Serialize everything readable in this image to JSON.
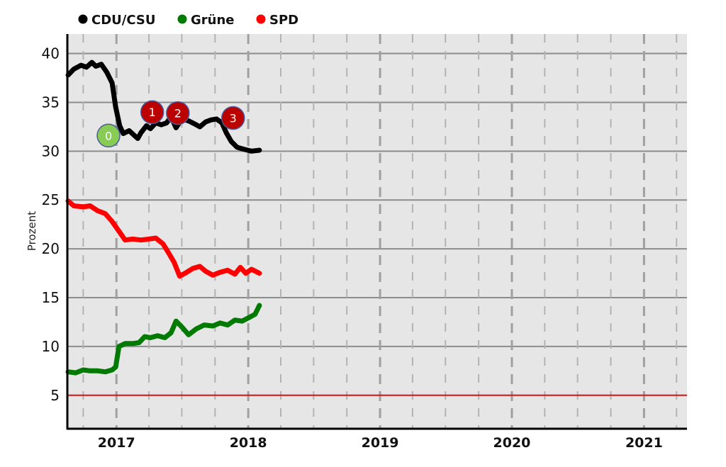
{
  "chart_data": {
    "type": "line",
    "title": "",
    "xlabel": "",
    "ylabel": "Prozent",
    "ylim": [
      1.5,
      42
    ],
    "xlim": [
      "2016-08-20",
      "2021-04-30"
    ],
    "y_ticks": [
      5,
      10,
      15,
      20,
      25,
      30,
      35,
      40
    ],
    "x_tick_labels": [
      {
        "label": "2017",
        "date": "2017-01-01"
      },
      {
        "label": "2018",
        "date": "2018-01-01"
      },
      {
        "label": "2019",
        "date": "2019-01-01"
      },
      {
        "label": "2020",
        "date": "2020-01-01"
      },
      {
        "label": "2021",
        "date": "2021-01-01"
      }
    ],
    "quarter_gridlines": [
      "2016-10-01",
      "2017-04-01",
      "2017-07-01",
      "2017-10-01",
      "2018-04-01",
      "2018-07-01",
      "2018-10-01",
      "2019-04-01",
      "2019-07-01",
      "2019-10-01",
      "2020-04-01",
      "2020-07-01",
      "2020-10-01",
      "2021-04-01"
    ],
    "grid": true,
    "legend": "top-left",
    "threshold_line": {
      "value": 5,
      "color": "#dd1111"
    },
    "colors": {
      "plot_background": "#e6e6e6",
      "gridline": "#8c8c8c"
    },
    "series": [
      {
        "name": "CDU/CSU",
        "color": "#000000",
        "points": [
          [
            "2016-08-20",
            37.8
          ],
          [
            "2016-09-05",
            38.4
          ],
          [
            "2016-09-25",
            38.8
          ],
          [
            "2016-10-10",
            38.6
          ],
          [
            "2016-10-25",
            39.1
          ],
          [
            "2016-11-05",
            38.7
          ],
          [
            "2016-11-20",
            38.9
          ],
          [
            "2016-12-05",
            38.1
          ],
          [
            "2016-12-20",
            37.0
          ],
          [
            "2016-12-30",
            34.5
          ],
          [
            "2017-01-10",
            32.6
          ],
          [
            "2017-01-20",
            31.8
          ],
          [
            "2017-02-05",
            32.1
          ],
          [
            "2017-02-20",
            31.6
          ],
          [
            "2017-03-01",
            31.3
          ],
          [
            "2017-03-10",
            31.9
          ],
          [
            "2017-03-25",
            32.6
          ],
          [
            "2017-04-05",
            32.3
          ],
          [
            "2017-04-20",
            32.9
          ],
          [
            "2017-05-05",
            32.7
          ],
          [
            "2017-05-20",
            32.9
          ],
          [
            "2017-06-01",
            33.5
          ],
          [
            "2017-06-15",
            32.4
          ],
          [
            "2017-07-01",
            33.3
          ],
          [
            "2017-07-20",
            33.1
          ],
          [
            "2017-08-05",
            32.8
          ],
          [
            "2017-08-20",
            32.5
          ],
          [
            "2017-09-05",
            33.0
          ],
          [
            "2017-09-20",
            33.2
          ],
          [
            "2017-10-05",
            33.3
          ],
          [
            "2017-10-20",
            32.9
          ],
          [
            "2017-11-01",
            31.9
          ],
          [
            "2017-11-15",
            31.0
          ],
          [
            "2017-12-01",
            30.4
          ],
          [
            "2017-12-20",
            30.2
          ],
          [
            "2018-01-10",
            30.0
          ],
          [
            "2018-02-01",
            30.1
          ]
        ]
      },
      {
        "name": "Grüne",
        "color": "#007a00",
        "points": [
          [
            "2016-08-20",
            7.4
          ],
          [
            "2016-09-10",
            7.3
          ],
          [
            "2016-10-01",
            7.6
          ],
          [
            "2016-10-20",
            7.5
          ],
          [
            "2016-11-10",
            7.5
          ],
          [
            "2016-12-01",
            7.4
          ],
          [
            "2016-12-20",
            7.6
          ],
          [
            "2016-12-30",
            7.9
          ],
          [
            "2017-01-08",
            10.0
          ],
          [
            "2017-01-25",
            10.3
          ],
          [
            "2017-02-15",
            10.3
          ],
          [
            "2017-03-05",
            10.4
          ],
          [
            "2017-03-20",
            11.0
          ],
          [
            "2017-04-05",
            10.9
          ],
          [
            "2017-04-25",
            11.1
          ],
          [
            "2017-05-15",
            10.9
          ],
          [
            "2017-06-01",
            11.4
          ],
          [
            "2017-06-15",
            12.6
          ],
          [
            "2017-07-01",
            12.0
          ],
          [
            "2017-07-20",
            11.2
          ],
          [
            "2017-08-10",
            11.8
          ],
          [
            "2017-09-01",
            12.2
          ],
          [
            "2017-09-25",
            12.1
          ],
          [
            "2017-10-15",
            12.4
          ],
          [
            "2017-11-05",
            12.2
          ],
          [
            "2017-11-25",
            12.7
          ],
          [
            "2017-12-15",
            12.6
          ],
          [
            "2018-01-05",
            13.0
          ],
          [
            "2018-01-20",
            13.3
          ],
          [
            "2018-02-01",
            14.2
          ]
        ]
      },
      {
        "name": "SPD",
        "color": "#ff0000",
        "points": [
          [
            "2016-08-20",
            24.9
          ],
          [
            "2016-09-05",
            24.4
          ],
          [
            "2016-10-01",
            24.3
          ],
          [
            "2016-10-20",
            24.4
          ],
          [
            "2016-11-10",
            23.9
          ],
          [
            "2016-12-01",
            23.6
          ],
          [
            "2016-12-20",
            22.8
          ],
          [
            "2017-01-10",
            21.7
          ],
          [
            "2017-01-25",
            20.9
          ],
          [
            "2017-02-15",
            21.0
          ],
          [
            "2017-03-10",
            20.9
          ],
          [
            "2017-04-01",
            21.0
          ],
          [
            "2017-04-20",
            21.1
          ],
          [
            "2017-05-10",
            20.5
          ],
          [
            "2017-05-25",
            19.6
          ],
          [
            "2017-06-10",
            18.6
          ],
          [
            "2017-06-25",
            17.2
          ],
          [
            "2017-07-10",
            17.5
          ],
          [
            "2017-08-01",
            18.0
          ],
          [
            "2017-08-20",
            18.2
          ],
          [
            "2017-09-05",
            17.7
          ],
          [
            "2017-09-25",
            17.3
          ],
          [
            "2017-10-15",
            17.6
          ],
          [
            "2017-11-05",
            17.8
          ],
          [
            "2017-11-25",
            17.4
          ],
          [
            "2017-12-10",
            18.1
          ],
          [
            "2017-12-25",
            17.5
          ],
          [
            "2018-01-10",
            17.9
          ],
          [
            "2018-02-01",
            17.5
          ]
        ]
      }
    ],
    "event_markers": [
      {
        "label": "0",
        "date": "2016-12-10",
        "y": 31.6,
        "color": "#88cc55"
      },
      {
        "label": "1",
        "date": "2017-04-10",
        "y": 34.0,
        "color": "#bb0000"
      },
      {
        "label": "2",
        "date": "2017-06-20",
        "y": 33.9,
        "color": "#bb0000"
      },
      {
        "label": "3",
        "date": "2017-11-20",
        "y": 33.4,
        "color": "#bb0000"
      }
    ]
  }
}
